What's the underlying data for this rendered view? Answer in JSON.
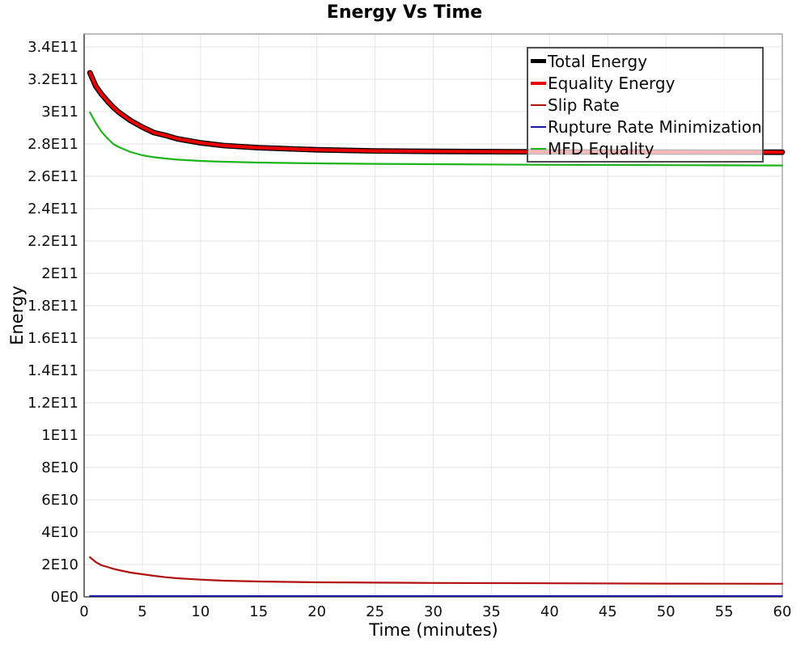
{
  "chart_data": {
    "type": "line",
    "title": "Energy Vs Time",
    "xlabel": "Time (minutes)",
    "ylabel": "Energy",
    "xlim": [
      0,
      60
    ],
    "ylim": [
      0,
      348000000000.0
    ],
    "grid": true,
    "legend_position": "top-right",
    "x_ticks": [
      0,
      5,
      10,
      15,
      20,
      25,
      30,
      35,
      40,
      45,
      50,
      55,
      60
    ],
    "y_ticks": [
      {
        "value": 0,
        "label": "0E0"
      },
      {
        "value": 20000000000.0,
        "label": "2E10"
      },
      {
        "value": 40000000000.0,
        "label": "4E10"
      },
      {
        "value": 60000000000.0,
        "label": "6E10"
      },
      {
        "value": 80000000000.0,
        "label": "8E10"
      },
      {
        "value": 100000000000.0,
        "label": "1E11"
      },
      {
        "value": 120000000000.0,
        "label": "1.2E11"
      },
      {
        "value": 140000000000.0,
        "label": "1.4E11"
      },
      {
        "value": 160000000000.0,
        "label": "1.6E11"
      },
      {
        "value": 180000000000.0,
        "label": "1.8E11"
      },
      {
        "value": 200000000000.0,
        "label": "2E11"
      },
      {
        "value": 220000000000.0,
        "label": "2.2E11"
      },
      {
        "value": 240000000000.0,
        "label": "2.4E11"
      },
      {
        "value": 260000000000.0,
        "label": "2.6E11"
      },
      {
        "value": 280000000000.0,
        "label": "2.8E11"
      },
      {
        "value": 300000000000.0,
        "label": "3E11"
      },
      {
        "value": 320000000000.0,
        "label": "3.2E11"
      },
      {
        "value": 340000000000.0,
        "label": "3.4E11"
      }
    ],
    "x": [
      0.5,
      1,
      1.5,
      2,
      2.5,
      3,
      4,
      5,
      6,
      7,
      8,
      10,
      12,
      15,
      20,
      25,
      30,
      40,
      50,
      60
    ],
    "series": [
      {
        "name": "Total Energy",
        "color": "#000000",
        "line_width": 6.8,
        "legend_swatch_height": 5,
        "values": [
          324000000000.0,
          315700000000.0,
          310700000000.0,
          306500000000.0,
          302700000000.0,
          299500000000.0,
          294400000000.0,
          290400000000.0,
          287000000000.0,
          285300000000.0,
          283200000000.0,
          280700000000.0,
          279000000000.0,
          277700000000.0,
          276400000000.0,
          275700000000.0,
          275400000000.0,
          275100000000.0,
          275000000000.0,
          274900000000.0
        ]
      },
      {
        "name": "Equality Energy",
        "color": "#e60000",
        "line_width": 4.2,
        "legend_swatch_height": 4,
        "values": [
          324000000000.0,
          315700000000.0,
          310700000000.0,
          306500000000.0,
          302700000000.0,
          299500000000.0,
          294400000000.0,
          290400000000.0,
          287000000000.0,
          285300000000.0,
          283200000000.0,
          280700000000.0,
          279000000000.0,
          277700000000.0,
          276400000000.0,
          275700000000.0,
          275400000000.0,
          275100000000.0,
          275000000000.0,
          274900000000.0
        ]
      },
      {
        "name": "Slip Rate",
        "color": "#b01010",
        "line_width": 2.2,
        "legend_swatch_height": 2,
        "values": [
          24500000000.0,
          21500000000.0,
          19500000000.0,
          18500000000.0,
          17350000000.0,
          16500000000.0,
          15000000000.0,
          14000000000.0,
          13000000000.0,
          12150000000.0,
          11500000000.0,
          10650000000.0,
          10000000000.0,
          9500000000.0,
          9000000000.0,
          8800000000.0,
          8600000000.0,
          8400000000.0,
          8200000000.0,
          8100000000.0
        ]
      },
      {
        "name": "Rupture Rate Minimization",
        "color": "#1a1aa6",
        "line_width": 2,
        "legend_swatch_height": 2,
        "values": [
          500000000.0,
          500000000.0,
          500000000.0,
          500000000.0,
          500000000.0,
          500000000.0,
          500000000.0,
          500000000.0,
          500000000.0,
          500000000.0,
          500000000.0,
          500000000.0,
          500000000.0,
          500000000.0,
          500000000.0,
          500000000.0,
          500000000.0,
          500000000.0,
          500000000.0,
          500000000.0
        ]
      },
      {
        "name": "MFD Equality",
        "color": "#1db41d",
        "line_width": 2.2,
        "legend_swatch_height": 2,
        "values": [
          299500000000.0,
          293000000000.0,
          287500000000.0,
          283500000000.0,
          280000000000.0,
          278000000000.0,
          275000000000.0,
          273000000000.0,
          271800000000.0,
          271000000000.0,
          270300000000.0,
          269500000000.0,
          269000000000.0,
          268500000000.0,
          268000000000.0,
          267700000000.0,
          267500000000.0,
          267100000000.0,
          266900000000.0,
          266700000000.0
        ]
      }
    ],
    "style": {
      "grid_color": "#e6e6e6",
      "frame_color": "#9a9a9a",
      "axis_color": "#555555",
      "tick_label_color": "#111111",
      "legend_border_color": "#4d4d4d",
      "legend_background": "rgba(255,255,255,0.72)",
      "plot_background": "#ffffff"
    }
  }
}
